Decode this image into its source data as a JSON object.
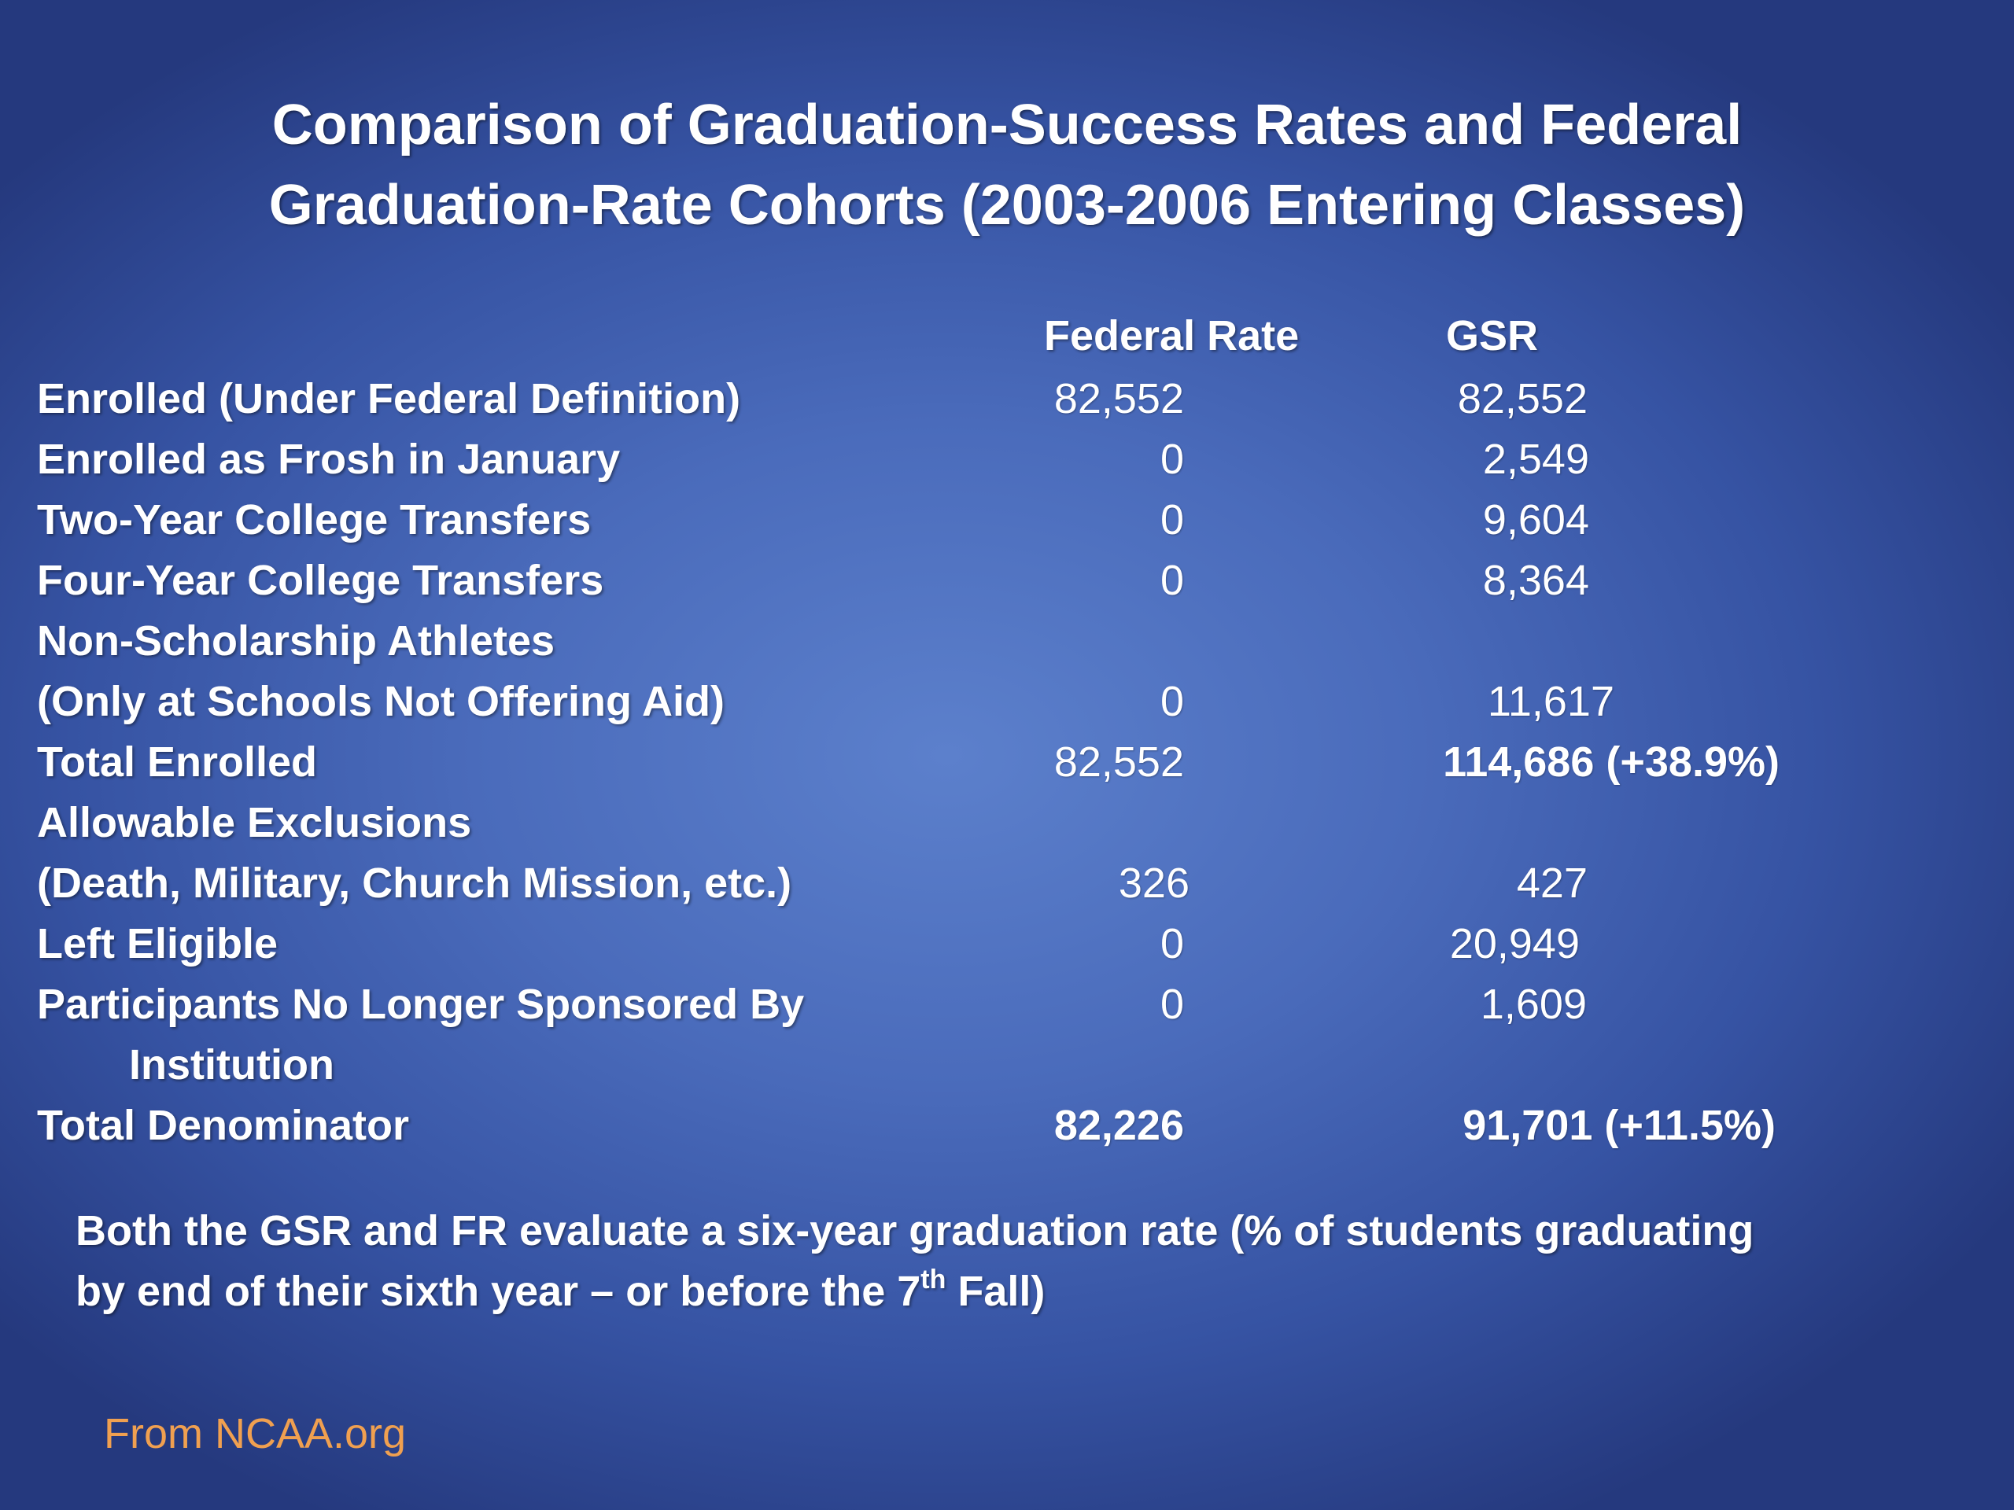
{
  "title": {
    "line1": "Comparison of Graduation-Success Rates and Federal",
    "line2": "Graduation-Rate Cohorts (2003-2006 Entering Classes)"
  },
  "columns": {
    "federal": "Federal Rate",
    "gsr": "GSR"
  },
  "rows": [
    {
      "label": "Enrolled (Under Federal Definition)",
      "federal": "82,552",
      "gsr": "82,552"
    },
    {
      "label": "Enrolled as Frosh in January",
      "federal": "0",
      "gsr": "2,549"
    },
    {
      "label": "Two-Year College Transfers",
      "federal": "0",
      "gsr": "9,604"
    },
    {
      "label": "Four-Year College Transfers",
      "federal": "0",
      "gsr": "8,364"
    },
    {
      "label": "Non-Scholarship Athletes",
      "federal": "",
      "gsr": ""
    },
    {
      "label": "(Only at Schools Not Offering Aid)",
      "federal": "0",
      "gsr": "11,617"
    },
    {
      "label": "Total Enrolled",
      "federal": "82,552",
      "gsr": "114,686 (+38.9%)"
    },
    {
      "label": "Allowable Exclusions",
      "federal": "",
      "gsr": ""
    },
    {
      "label": "(Death, Military, Church Mission, etc.)",
      "federal": "326",
      "gsr": "427"
    },
    {
      "label": "Left Eligible",
      "federal": "0",
      "gsr": "20,949"
    },
    {
      "label": "Participants No Longer Sponsored By",
      "federal": "0",
      "gsr": "1,609"
    },
    {
      "label": "Institution",
      "federal": "",
      "gsr": ""
    },
    {
      "label": "Total Denominator",
      "federal": "82,226",
      "gsr": "91,701 (+11.5%)"
    }
  ],
  "note": {
    "line1": "Both the GSR and FR evaluate  a six-year graduation rate (% of students graduating",
    "line2_before": "by end of their sixth year – or before the 7",
    "line2_sup": "th",
    "line2_after": " Fall)"
  },
  "source": "From NCAA.org",
  "colors": {
    "background_center": "#5c80cc",
    "background_edge": "#25397e",
    "text": "#ffffff",
    "source_text": "#f0a050"
  }
}
